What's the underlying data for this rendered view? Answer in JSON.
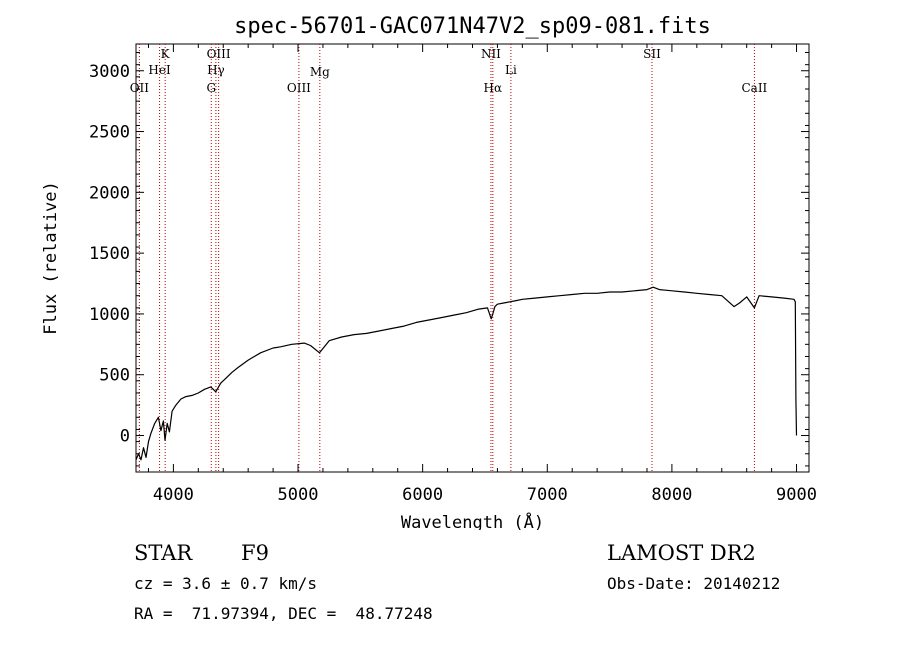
{
  "chart_data": {
    "type": "line",
    "title": "spec-56701-GAC071N47V2_sp09-081.fits",
    "xlabel": "Wavelength (Å)",
    "ylabel": "Flux (relative)",
    "xlim": [
      3700,
      9100
    ],
    "ylim": [
      -300,
      3220
    ],
    "xticks": [
      4000,
      5000,
      6000,
      7000,
      8000,
      9000
    ],
    "yticks": [
      0,
      500,
      1000,
      1500,
      2000,
      2500,
      3000
    ],
    "grid": false,
    "series": [
      {
        "name": "",
        "x": [
          3700,
          3720,
          3740,
          3760,
          3780,
          3800,
          3820,
          3850,
          3880,
          3900,
          3920,
          3933,
          3950,
          3968,
          3990,
          4020,
          4060,
          4100,
          4150,
          4200,
          4250,
          4300,
          4340,
          4380,
          4420,
          4470,
          4520,
          4600,
          4700,
          4800,
          4860,
          4950,
          5050,
          5100,
          5172,
          5250,
          5350,
          5450,
          5550,
          5650,
          5750,
          5850,
          5950,
          6050,
          6150,
          6250,
          6350,
          6450,
          6520,
          6550,
          6563,
          6580,
          6600,
          6650,
          6700,
          6750,
          6800,
          6900,
          7000,
          7100,
          7200,
          7300,
          7400,
          7500,
          7600,
          7700,
          7800,
          7850,
          7900,
          7950,
          8000,
          8100,
          8200,
          8300,
          8400,
          8498,
          8542,
          8600,
          8662,
          8700,
          8800,
          8900,
          8980,
          8990,
          8995,
          9000
        ],
        "y": [
          -200,
          -150,
          -200,
          -100,
          -180,
          -50,
          20,
          100,
          150,
          40,
          120,
          -40,
          100,
          30,
          200,
          250,
          300,
          320,
          330,
          350,
          380,
          400,
          360,
          430,
          470,
          520,
          560,
          620,
          680,
          720,
          730,
          750,
          760,
          740,
          680,
          780,
          810,
          830,
          840,
          860,
          880,
          900,
          930,
          950,
          970,
          990,
          1010,
          1040,
          1050,
          960,
          1000,
          1060,
          1080,
          1090,
          1100,
          1110,
          1120,
          1130,
          1140,
          1150,
          1160,
          1170,
          1170,
          1180,
          1180,
          1190,
          1200,
          1220,
          1200,
          1195,
          1190,
          1180,
          1170,
          1160,
          1150,
          1060,
          1090,
          1140,
          1050,
          1150,
          1140,
          1130,
          1120,
          1100,
          300,
          0
        ]
      }
    ],
    "lines": [
      {
        "label": "OII",
        "x": 3727
      },
      {
        "label": "HeI",
        "x": 3889
      },
      {
        "label": "K",
        "x": 3934
      },
      {
        "label": "G",
        "x": 4304
      },
      {
        "label": "Hγ",
        "x": 4341
      },
      {
        "label": "OIII",
        "x": 4363
      },
      {
        "label": "OIII",
        "x": 5007
      },
      {
        "label": "Mg",
        "x": 5175
      },
      {
        "label": "NII",
        "x": 6548
      },
      {
        "label": "Hα",
        "x": 6563
      },
      {
        "label": "Li",
        "x": 6708
      },
      {
        "label": "SII",
        "x": 7840
      },
      {
        "label": "CaII",
        "x": 8662
      }
    ]
  },
  "info": {
    "class_label": "STAR",
    "subclass": "F9",
    "survey": "LAMOST DR2",
    "cz": "cz = 3.6 ± 0.7 km/s",
    "obs_date": "Obs-Date: 20140212",
    "coords": "RA =  71.97394, DEC =  48.77248"
  },
  "colors": {
    "spectrum": "#000000",
    "line_markers": "#c00000",
    "axes": "#000000",
    "background": "#ffffff"
  }
}
